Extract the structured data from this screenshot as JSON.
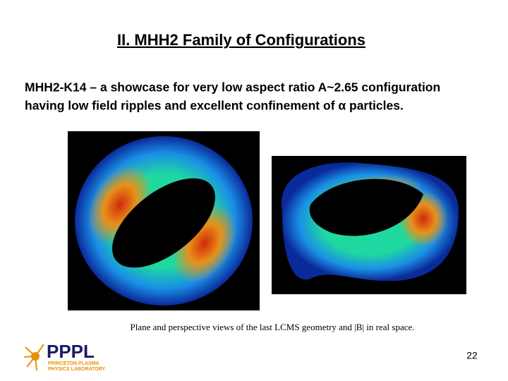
{
  "slide": {
    "title": "II. MHH2 Family of Configurations",
    "body": [
      "MHH2-K14 – a showcase for very low aspect ratio A~2.65 configuration",
      "having low field ripples and excellent confinement of α particles."
    ],
    "caption": "Plane and perspective views of the last LCMS geometry and |B| in real space.",
    "logo": {
      "name": "PPPL",
      "line1": "PRINCETON PLASMA",
      "line2": "PHYSICS LABORATORY"
    },
    "page_number": "22"
  }
}
